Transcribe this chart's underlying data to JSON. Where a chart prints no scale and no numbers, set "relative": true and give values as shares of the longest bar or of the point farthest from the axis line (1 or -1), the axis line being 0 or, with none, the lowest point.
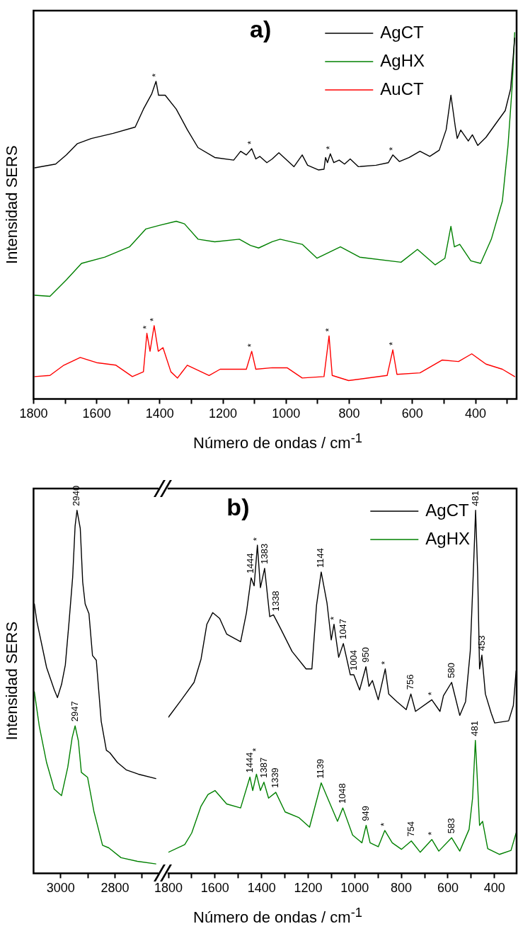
{
  "chart_data": [
    {
      "type": "line",
      "title": "a)",
      "xlabel": "Número de ondas / cm$^{-1}$",
      "ylabel": "Intensidad SERS",
      "relative": true,
      "legend": "top right",
      "xlim": [
        1800,
        270
      ],
      "xticks": [
        1800,
        {
          "value": 1700,
          "label": null
        },
        1600,
        {
          "value": 1500,
          "label": null
        },
        1400,
        {
          "value": 1300,
          "label": null
        },
        1200,
        {
          "value": 1100,
          "label": null
        },
        1000,
        {
          "value": 900,
          "label": null
        },
        800,
        {
          "value": 700,
          "label": null
        },
        600,
        {
          "value": 500,
          "label": null
        },
        400,
        {
          "value": 300,
          "label": null
        }
      ],
      "series": [
        {
          "name": "AgCT",
          "color": "#000000",
          "x": [
            1796,
            1730,
            1696,
            1661,
            1617,
            1548,
            1478,
            1452,
            1426,
            1412,
            1404,
            1383,
            1348,
            1313,
            1279,
            1226,
            1166,
            1144,
            1126,
            1109,
            1096,
            1083,
            1061,
            1044,
            1023,
            975,
            949,
            932,
            897,
            880,
            875,
            869,
            860,
            849,
            832,
            815,
            797,
            771,
            715,
            676,
            662,
            641,
            610,
            576,
            545,
            515,
            493,
            478,
            464,
            458,
            447,
            423,
            410,
            393,
            367,
            332,
            306,
            289,
            276
          ],
          "values": [
            0.631,
            0.641,
            0.666,
            0.697,
            0.711,
            0.725,
            0.742,
            0.791,
            0.832,
            0.867,
            0.829,
            0.829,
            0.791,
            0.735,
            0.686,
            0.659,
            0.652,
            0.676,
            0.666,
            0.683,
            0.655,
            0.662,
            0.645,
            0.655,
            0.672,
            0.634,
            0.666,
            0.638,
            0.625,
            0.627,
            0.659,
            0.645,
            0.669,
            0.645,
            0.652,
            0.641,
            0.655,
            0.634,
            0.638,
            0.645,
            0.666,
            0.648,
            0.659,
            0.676,
            0.662,
            0.679,
            0.735,
            0.829,
            0.742,
            0.711,
            0.734,
            0.704,
            0.721,
            0.692,
            0.714,
            0.756,
            0.787,
            0.846,
            0.985
          ]
        },
        {
          "name": "AgHX",
          "color": "#008000",
          "x": [
            1796,
            1748,
            1696,
            1648,
            1574,
            1496,
            1444,
            1400,
            1348,
            1322,
            1279,
            1226,
            1148,
            1113,
            1087,
            1044,
            1019,
            949,
            902,
            828,
            767,
            636,
            584,
            528,
            497,
            478,
            467,
            450,
            415,
            384,
            350,
            315,
            297,
            284,
            276
          ],
          "values": [
            0.283,
            0.28,
            0.325,
            0.37,
            0.387,
            0.415,
            0.464,
            0.474,
            0.485,
            0.478,
            0.436,
            0.429,
            0.436,
            0.419,
            0.412,
            0.429,
            0.436,
            0.422,
            0.384,
            0.415,
            0.387,
            0.373,
            0.408,
            0.366,
            0.384,
            0.471,
            0.415,
            0.422,
            0.377,
            0.37,
            0.436,
            0.54,
            0.693,
            0.853,
            1
          ]
        },
        {
          "name": "AuCT",
          "color": "#ff0000",
          "x": [
            1796,
            1748,
            1704,
            1652,
            1600,
            1539,
            1487,
            1452,
            1441,
            1431,
            1418,
            1405,
            1390,
            1365,
            1344,
            1313,
            1244,
            1209,
            1126,
            1109,
            1096,
            1044,
            997,
            949,
            880,
            864,
            854,
            802,
            680,
            662,
            649,
            576,
            506,
            454,
            412,
            367,
            315,
            276
          ],
          "values": [
            0.061,
            0.064,
            0.092,
            0.113,
            0.099,
            0.092,
            0.061,
            0.074,
            0.179,
            0.13,
            0.2,
            0.13,
            0.14,
            0.074,
            0.057,
            0.092,
            0.064,
            0.081,
            0.081,
            0.13,
            0.081,
            0.085,
            0.085,
            0.057,
            0.061,
            0.172,
            0.064,
            0.05,
            0.064,
            0.134,
            0.067,
            0.071,
            0.106,
            0.102,
            0.123,
            0.095,
            0.081,
            0.061
          ]
        }
      ],
      "annotations": [
        {
          "text": "*",
          "x": 1412,
          "y": 0.867
        },
        {
          "text": "*",
          "x": 1109,
          "y": 0.683
        },
        {
          "text": "*",
          "x": 860,
          "y": 0.669
        },
        {
          "text": "*",
          "x": 662,
          "y": 0.666
        },
        {
          "text": "*",
          "x": 1441,
          "y": 0.179
        },
        {
          "text": "*",
          "x": 1418,
          "y": 0.2
        },
        {
          "text": "*",
          "x": 1109,
          "y": 0.13
        },
        {
          "text": "*",
          "x": 864,
          "y": 0.172
        },
        {
          "text": "*",
          "x": 662,
          "y": 0.134
        }
      ]
    },
    {
      "type": "line",
      "ylabel": "Intensidad SERS",
      "relative": true,
      "xlim": [
        3100,
        2640
      ],
      "xticks": [
        3000,
        {
          "value": 2900,
          "label": null
        },
        2800,
        {
          "value": 2700,
          "label": null
        }
      ],
      "series": [
        {
          "color": "#000000",
          "x": [
            3097,
            3088,
            3052,
            3024,
            3012,
            2997,
            2983,
            2969,
            2956,
            2947,
            2940,
            2928,
            2919,
            2910,
            2896,
            2883,
            2869,
            2851,
            2832,
            2819,
            2791,
            2759,
            2714,
            2650
          ],
          "values": [
            0.742,
            0.695,
            0.567,
            0.506,
            0.484,
            0.52,
            0.574,
            0.695,
            0.816,
            0.957,
            1,
            0.95,
            0.802,
            0.742,
            0.715,
            0.6,
            0.587,
            0.419,
            0.339,
            0.332,
            0.305,
            0.285,
            0.273,
            0.261
          ]
        },
        {
          "color": "#008000",
          "x": [
            3097,
            3079,
            3052,
            3024,
            2997,
            2974,
            2958,
            2947,
            2935,
            2924,
            2901,
            2878,
            2846,
            2823,
            2778,
            2718,
            2650
          ],
          "values": [
            0.5,
            0.406,
            0.305,
            0.232,
            0.214,
            0.292,
            0.373,
            0.406,
            0.365,
            0.278,
            0.264,
            0.171,
            0.077,
            0.07,
            0.043,
            0.033,
            0.026
          ]
        }
      ],
      "annotations": [
        {
          "text": "2940",
          "x": 2940,
          "y": 1
        },
        {
          "text": "2947",
          "x": 2947,
          "y": 0.406
        }
      ]
    },
    {
      "type": "line",
      "title": "b)",
      "xlabel": "Número de ondas / cm$^{-1}$",
      "relative": true,
      "legend": "top right",
      "xlim": [
        1800,
        305
      ],
      "xticks": [
        1800,
        {
          "value": 1700,
          "label": null
        },
        1600,
        {
          "value": 1500,
          "label": null
        },
        1400,
        {
          "value": 1300,
          "label": null
        },
        1200,
        {
          "value": 1100,
          "label": null
        },
        1000,
        {
          "value": 900,
          "label": null
        },
        800,
        {
          "value": 700,
          "label": null
        },
        600,
        {
          "value": 500,
          "label": null
        },
        400
      ],
      "series": [
        {
          "name": "AgCT",
          "color": "#000000",
          "x": [
            1800,
            1750,
            1690,
            1660,
            1635,
            1610,
            1580,
            1550,
            1490,
            1465,
            1445,
            1432,
            1418,
            1405,
            1387,
            1365,
            1349,
            1319,
            1269,
            1209,
            1184,
            1164,
            1144,
            1119,
            1101,
            1089,
            1069,
            1049,
            1019,
            1004,
            979,
            952,
            939,
            924,
            899,
            869,
            854,
            819,
            779,
            759,
            739,
            669,
            634,
            619,
            584,
            549,
            524,
            504,
            491,
            481,
            472,
            464,
            454,
            439,
            414,
            399,
            339,
            319,
            307
          ],
          "values": [
            0.43,
            0.473,
            0.526,
            0.59,
            0.686,
            0.718,
            0.702,
            0.659,
            0.638,
            0.718,
            0.814,
            0.792,
            0.904,
            0.787,
            0.84,
            0.707,
            0.712,
            0.675,
            0.611,
            0.563,
            0.563,
            0.739,
            0.83,
            0.744,
            0.643,
            0.686,
            0.595,
            0.633,
            0.547,
            0.547,
            0.505,
            0.569,
            0.515,
            0.531,
            0.478,
            0.563,
            0.494,
            0.473,
            0.451,
            0.494,
            0.446,
            0.478,
            0.446,
            0.489,
            0.526,
            0.435,
            0.473,
            0.611,
            0.824,
            1,
            0.824,
            0.563,
            0.601,
            0.494,
            0.441,
            0.414,
            0.42,
            0.462,
            0.558
          ]
        },
        {
          "name": "AgHX",
          "color": "#008000",
          "x": [
            1800,
            1730,
            1700,
            1660,
            1630,
            1600,
            1550,
            1490,
            1450,
            1438,
            1422,
            1405,
            1390,
            1370,
            1339,
            1299,
            1239,
            1194,
            1144,
            1109,
            1074,
            1051,
            1009,
            969,
            951,
            934,
            899,
            871,
            839,
            799,
            757,
            719,
            669,
            639,
            584,
            549,
            509,
            494,
            482,
            472,
            464,
            451,
            429,
            379,
            329,
            307
          ],
          "values": [
            0.058,
            0.079,
            0.111,
            0.185,
            0.217,
            0.228,
            0.191,
            0.18,
            0.265,
            0.228,
            0.273,
            0.228,
            0.251,
            0.207,
            0.223,
            0.169,
            0.153,
            0.127,
            0.249,
            0.196,
            0.143,
            0.18,
            0.105,
            0.084,
            0.132,
            0.084,
            0.073,
            0.118,
            0.084,
            0.066,
            0.089,
            0.058,
            0.093,
            0.061,
            0.098,
            0.061,
            0.121,
            0.207,
            0.366,
            0.239,
            0.132,
            0.143,
            0.068,
            0.052,
            0.063,
            0.111
          ]
        }
      ],
      "annotations": [
        {
          "text": "1444",
          "x": 1445,
          "y": 0.814
        },
        {
          "text": "*",
          "x": 1418,
          "y": 0.904
        },
        {
          "text": "1383",
          "x": 1387,
          "y": 0.84
        },
        {
          "text": "1338",
          "x": 1338,
          "y": 0.71
        },
        {
          "text": "1144",
          "x": 1144,
          "y": 0.83
        },
        {
          "text": "*",
          "x": 1089,
          "y": 0.686
        },
        {
          "text": "1047",
          "x": 1049,
          "y": 0.633
        },
        {
          "text": "1004",
          "x": 1004,
          "y": 0.547
        },
        {
          "text": "950",
          "x": 952,
          "y": 0.569
        },
        {
          "text": "*",
          "x": 869,
          "y": 0.563
        },
        {
          "text": "756",
          "x": 759,
          "y": 0.494
        },
        {
          "text": "*",
          "x": 669,
          "y": 0.478
        },
        {
          "text": "580",
          "x": 584,
          "y": 0.526
        },
        {
          "text": "481",
          "x": 481,
          "y": 1
        },
        {
          "text": "453",
          "x": 454,
          "y": 0.601
        },
        {
          "text": "1444",
          "x": 1450,
          "y": 0.265
        },
        {
          "text": "*",
          "x": 1422,
          "y": 0.273
        },
        {
          "text": "1387",
          "x": 1390,
          "y": 0.251
        },
        {
          "text": "1339",
          "x": 1339,
          "y": 0.223
        },
        {
          "text": "1139",
          "x": 1144,
          "y": 0.249
        },
        {
          "text": "1048",
          "x": 1051,
          "y": 0.18
        },
        {
          "text": "949",
          "x": 951,
          "y": 0.132
        },
        {
          "text": "*",
          "x": 871,
          "y": 0.118
        },
        {
          "text": "754",
          "x": 757,
          "y": 0.089
        },
        {
          "text": "*",
          "x": 669,
          "y": 0.093
        },
        {
          "text": "583",
          "x": 584,
          "y": 0.098
        },
        {
          "text": "481",
          "x": 482,
          "y": 0.366
        }
      ]
    }
  ]
}
